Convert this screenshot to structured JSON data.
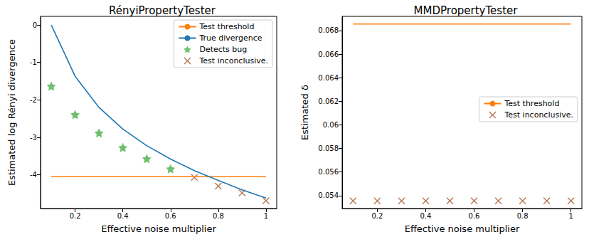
{
  "chart_data": [
    {
      "type": "line",
      "title": "RényiPropertyTester",
      "x_label": "Effective noise multiplier",
      "y_label": "Estimated log Rényi divergence",
      "xlim": [
        0.055,
        1.045
      ],
      "xticks": [
        0.2,
        0.4,
        0.6,
        0.8,
        1.0
      ],
      "ylim": [
        -4.9,
        0.23
      ],
      "yticks": [
        -4,
        -3,
        -2,
        -1,
        0
      ],
      "grid": false,
      "legend": "upper right",
      "series": [
        {
          "name": "Test threshold",
          "type": "line",
          "color": "#ff7f0e",
          "line_style": "solid",
          "x": [
            0.1,
            1.0
          ],
          "values": [
            -4.05,
            -4.05
          ]
        },
        {
          "name": "True divergence",
          "type": "line",
          "color": "#1f77b4",
          "line_style": "solid",
          "x": [
            0.1,
            0.2,
            0.3,
            0.4,
            0.5,
            0.6,
            0.7,
            0.8,
            0.9,
            1.0
          ],
          "values": [
            0.0,
            -1.37,
            -2.2,
            -2.78,
            -3.22,
            -3.58,
            -3.89,
            -4.15,
            -4.4,
            -4.62
          ]
        },
        {
          "name": "Detects bug",
          "type": "scatter",
          "color": "#4daf4a",
          "marker": "star",
          "x": [
            0.1,
            0.2,
            0.3,
            0.4,
            0.5,
            0.6
          ],
          "values": [
            -1.63,
            -2.39,
            -2.88,
            -3.27,
            -3.57,
            -3.84
          ]
        },
        {
          "name": "Test inconclusive.",
          "type": "scatter",
          "color": "#a65628",
          "marker": "x",
          "x": [
            0.7,
            0.8,
            0.9,
            1.0
          ],
          "values": [
            -4.07,
            -4.3,
            -4.48,
            -4.69
          ]
        }
      ]
    },
    {
      "type": "line",
      "title": "MMDPropertyTester",
      "x_label": "Effective noise multiplier",
      "y_label": "Estimated δ",
      "xlim": [
        0.055,
        1.045
      ],
      "xticks": [
        0.2,
        0.4,
        0.6,
        0.8,
        1.0
      ],
      "ylim": [
        0.0529,
        0.0692
      ],
      "yticks": [
        0.054,
        0.056,
        0.058,
        0.06,
        0.062,
        0.064,
        0.066,
        0.068
      ],
      "grid": false,
      "legend": "center right",
      "series": [
        {
          "name": "Test threshold",
          "type": "line",
          "color": "#ff7f0e",
          "line_style": "solid",
          "x": [
            0.1,
            1.0
          ],
          "values": [
            0.06855,
            0.06855
          ]
        },
        {
          "name": "Test inconclusive.",
          "type": "scatter",
          "color": "#a65628",
          "marker": "x",
          "x": [
            0.1,
            0.2,
            0.3,
            0.4,
            0.5,
            0.6,
            0.7,
            0.8,
            0.9,
            1.0
          ],
          "values": [
            0.05355,
            0.05355,
            0.05355,
            0.05355,
            0.05355,
            0.05355,
            0.05355,
            0.05355,
            0.05355,
            0.05355
          ]
        }
      ]
    }
  ]
}
